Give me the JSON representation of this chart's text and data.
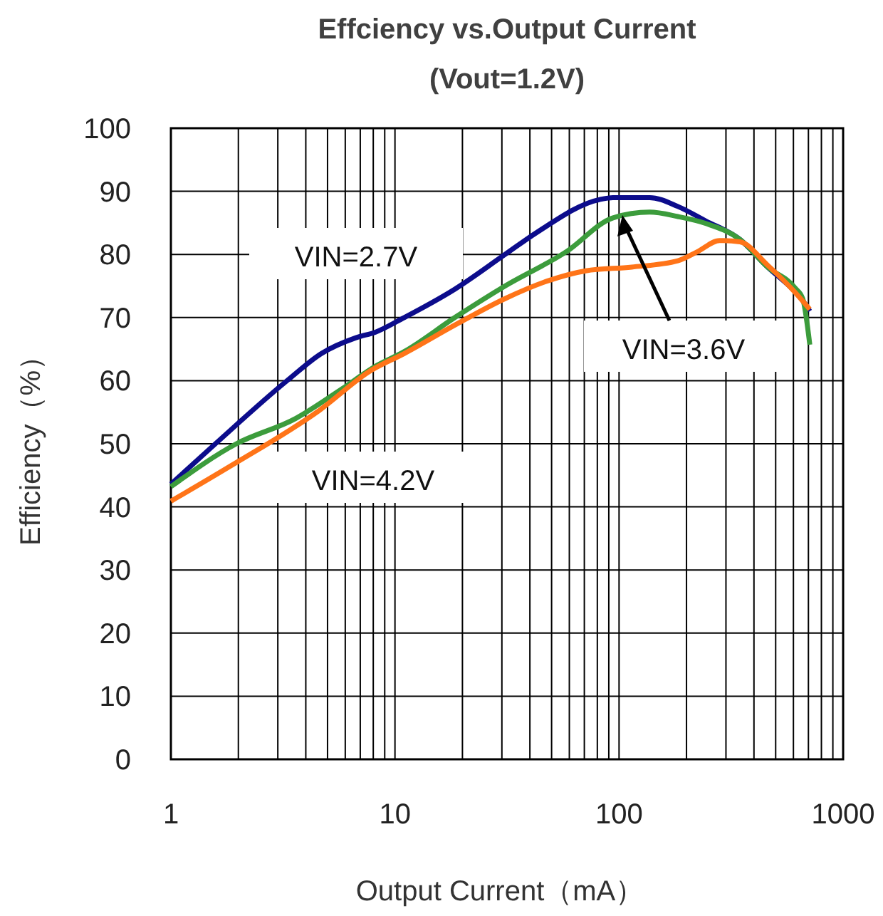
{
  "chart_data": {
    "type": "line",
    "title": "Effciency vs.Output Current",
    "subtitle": "(Vout=1.2V)",
    "xlabel": "Output Current（mA）",
    "ylabel": "Efficiency（%）",
    "log": "x",
    "grid": true,
    "xlim": [
      1,
      1000
    ],
    "ylim": [
      0,
      100
    ],
    "xticks": [
      1,
      10,
      100,
      1000
    ],
    "yticks": [
      0,
      10,
      20,
      30,
      40,
      50,
      60,
      70,
      80,
      90,
      100
    ],
    "series": [
      {
        "name": "VIN=2.7V",
        "color": "#0c0c8c",
        "x": [
          1,
          1.58,
          3.3,
          4.7,
          6.7,
          8.2,
          11,
          18.5,
          31,
          43,
          82,
          94,
          137,
          183,
          244,
          346,
          460,
          575,
          635,
          710
        ],
        "values": [
          43.6,
          50,
          60,
          64.3,
          66.8,
          67.7,
          70,
          74.5,
          80,
          83.5,
          88.7,
          89,
          89,
          87.6,
          85.3,
          82.4,
          78,
          75,
          73.5,
          71
        ]
      },
      {
        "name": "VIN=3.6V",
        "color": "#3c9c3c",
        "x": [
          1,
          1.96,
          3.6,
          5.8,
          8.2,
          11,
          18.5,
          31,
          58,
          94,
          137,
          183,
          244,
          346,
          460,
          610,
          660,
          710
        ],
        "values": [
          43.2,
          50,
          54,
          58.7,
          62.3,
          64.6,
          70,
          75,
          80.4,
          85.8,
          86.7,
          86,
          84.9,
          82.4,
          78,
          74.7,
          73,
          65.7
        ]
      },
      {
        "name": "VIN=4.2V",
        "color": "#ff7418",
        "x": [
          1,
          1.85,
          4.6,
          7.8,
          11,
          18.5,
          31,
          48,
          71,
          114,
          183,
          223,
          281,
          346,
          460,
          610,
          710
        ],
        "values": [
          40.9,
          46.5,
          55.3,
          61.6,
          64.3,
          68.8,
          73,
          75.8,
          77.4,
          78,
          79,
          80.4,
          82.2,
          82,
          78.3,
          74,
          71.3
        ]
      }
    ]
  }
}
